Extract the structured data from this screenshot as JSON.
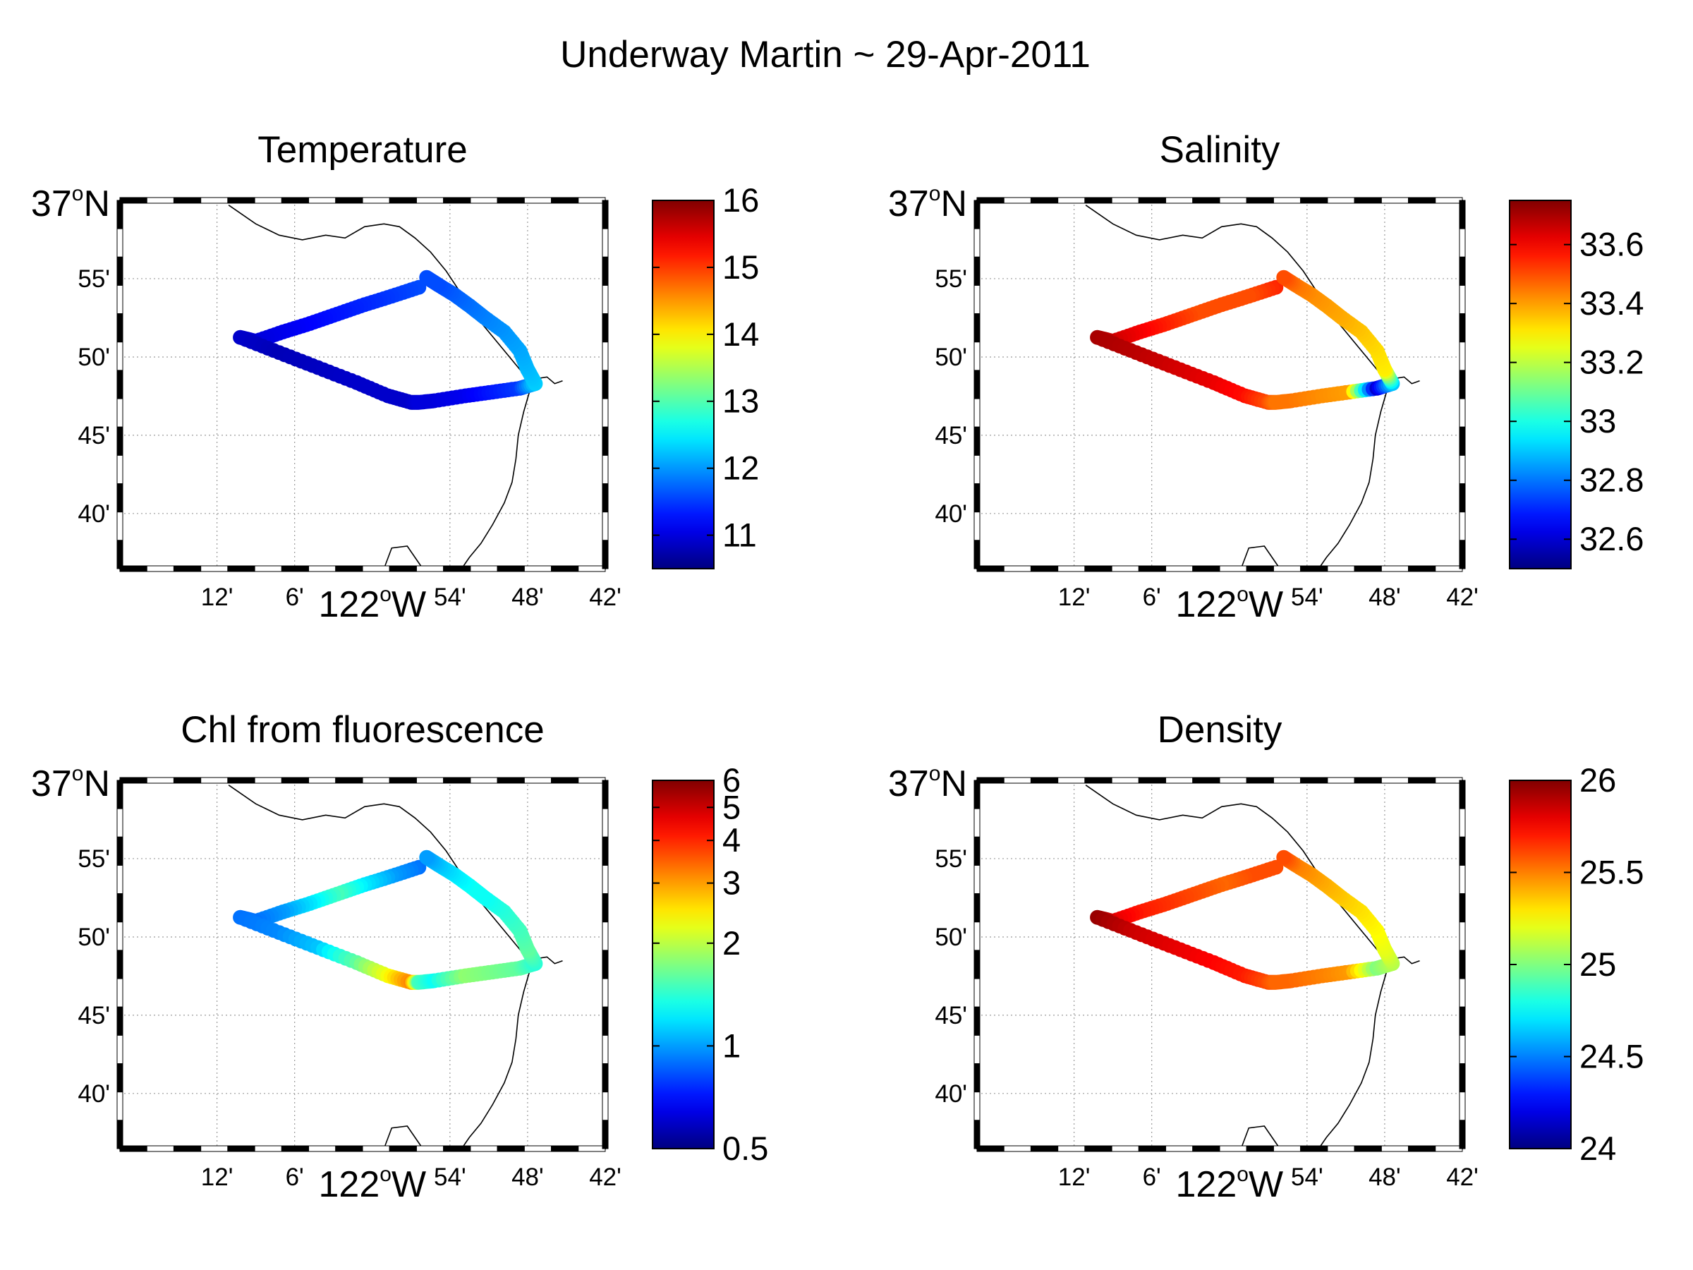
{
  "figure": {
    "title": "Underway Martin ~ 29-Apr-2011"
  },
  "map_axes": {
    "lat_tick_labels": [
      "55'",
      "50'",
      "45'",
      "40'"
    ],
    "lat_tick_values": [
      36.9167,
      36.8333,
      36.75,
      36.6667
    ],
    "lat_main_label": {
      "deg": "37",
      "sup": "o",
      "hemi": "N"
    },
    "lon_tick_labels": [
      "12'",
      "6'",
      "54'",
      "48'",
      "42'"
    ],
    "lon_tick_values": [
      -122.2,
      -122.1,
      -121.9,
      -121.8,
      -121.7
    ],
    "lon_main_label": {
      "deg": "122",
      "sup": "o",
      "hemi": "W"
    },
    "xlim": [
      -122.325,
      -121.7
    ],
    "ylim": [
      36.608,
      37.0
    ],
    "grid": true
  },
  "track": {
    "lon": [
      -121.94,
      -121.975,
      -122.01,
      -122.045,
      -122.08,
      -122.115,
      -122.15,
      -122.17,
      -122.12,
      -122.07,
      -122.02,
      -121.98,
      -121.95,
      -121.94,
      -121.92,
      -121.88,
      -121.845,
      -121.81,
      -121.79,
      -121.8,
      -121.81,
      -121.83,
      -121.855,
      -121.875,
      -121.895,
      -121.915,
      -121.93
    ],
    "lat": [
      36.9075,
      36.898,
      36.889,
      36.879,
      36.869,
      36.86,
      36.85,
      36.8542,
      36.838,
      36.822,
      36.806,
      36.792,
      36.785,
      36.785,
      36.7867,
      36.792,
      36.796,
      36.8,
      36.805,
      36.82,
      36.84,
      36.86,
      36.875,
      36.888,
      36.9,
      36.91,
      36.918
    ]
  },
  "chart_data": [
    {
      "type": "scatter",
      "title": "Temperature",
      "colorbar": {
        "lim": [
          10.5,
          16
        ],
        "ticks": [
          11,
          12,
          13,
          14,
          15,
          16
        ],
        "ticklabels": [
          "11",
          "12",
          "13",
          "14",
          "15",
          "16"
        ],
        "scale": "linear"
      },
      "values": [
        11.6,
        11.5,
        11.4,
        11.3,
        11.2,
        11.1,
        11.0,
        10.9,
        10.8,
        10.85,
        10.9,
        10.9,
        10.9,
        11.0,
        11.0,
        11.1,
        11.3,
        11.5,
        12.3,
        12.2,
        12.1,
        12.0,
        11.9,
        11.8,
        11.7,
        11.6,
        11.6
      ]
    },
    {
      "type": "scatter",
      "title": "Salinity",
      "colorbar": {
        "lim": [
          32.5,
          33.75
        ],
        "ticks": [
          32.6,
          32.8,
          33,
          33.2,
          33.4,
          33.6
        ],
        "ticklabels": [
          "32.6",
          "32.8",
          "33",
          "33.2",
          "33.4",
          "33.6"
        ],
        "scale": "linear"
      },
      "values": [
        33.55,
        33.5,
        33.5,
        33.5,
        33.55,
        33.6,
        33.65,
        33.7,
        33.68,
        33.65,
        33.62,
        33.58,
        33.5,
        33.45,
        33.45,
        33.42,
        33.4,
        32.6,
        32.9,
        33.3,
        33.32,
        33.35,
        33.38,
        33.4,
        33.42,
        33.45,
        33.5
      ]
    },
    {
      "type": "scatter",
      "title": "Chl from fluorescence",
      "colorbar": {
        "lim": [
          0.5,
          6
        ],
        "ticks": [
          0.5,
          1,
          2,
          3,
          4,
          5,
          6
        ],
        "ticklabels": [
          "0.5",
          "1",
          "2",
          "3",
          "4",
          "5",
          "6"
        ],
        "scale": "log"
      },
      "values": [
        0.9,
        1.0,
        1.2,
        1.5,
        1.2,
        1.0,
        0.9,
        0.9,
        0.95,
        1.1,
        1.6,
        2.3,
        3.2,
        1.5,
        1.3,
        1.8,
        1.7,
        1.6,
        1.4,
        1.6,
        1.5,
        1.4,
        1.3,
        1.3,
        1.2,
        1.1,
        1.0
      ]
    },
    {
      "type": "scatter",
      "title": "Density",
      "colorbar": {
        "lim": [
          24,
          26
        ],
        "ticks": [
          24,
          24.5,
          25,
          25.5,
          26
        ],
        "ticklabels": [
          "24",
          "24.5",
          "25",
          "25.5",
          "26"
        ],
        "scale": "linear"
      },
      "values": [
        25.6,
        25.6,
        25.55,
        25.6,
        25.65,
        25.7,
        25.8,
        25.95,
        25.85,
        25.8,
        25.75,
        25.7,
        25.6,
        25.55,
        25.55,
        25.5,
        25.45,
        25.0,
        25.1,
        25.2,
        25.25,
        25.3,
        25.35,
        25.4,
        25.45,
        25.5,
        25.6
      ]
    }
  ]
}
